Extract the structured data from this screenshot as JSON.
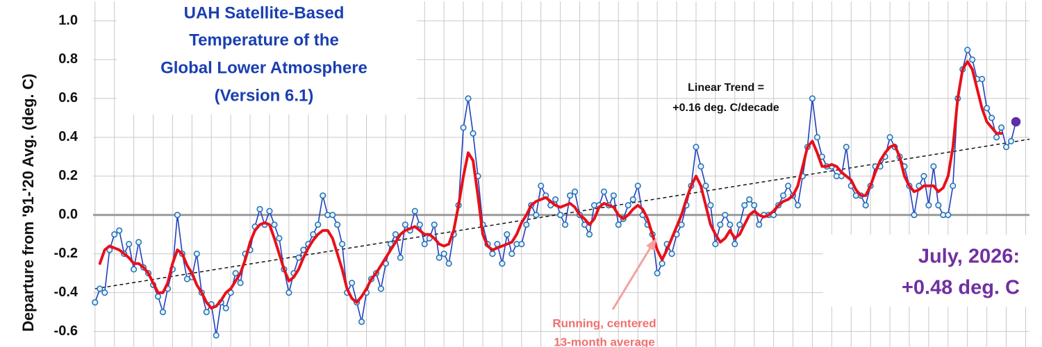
{
  "chart_data": {
    "type": "line",
    "title": [
      "UAH Satellite-Based",
      "Temperature of the",
      "Global Lower Atmosphere",
      "(Version 6.1)"
    ],
    "y_label": "Departure from '91-'20 Avg. (deg. C)",
    "trend_label": [
      "Linear Trend =",
      "+0.16 deg. C/decade"
    ],
    "latest_label": [
      "July, 2026:",
      "+0.48 deg. C"
    ],
    "mean_label": [
      "Running, centered",
      "13-month average"
    ],
    "xlim": [
      1978.9,
      2027.2
    ],
    "ylim": [
      -0.68,
      1.1
    ],
    "yticks": [
      -0.6,
      -0.4,
      -0.2,
      {
        "value": 0,
        "label": "0.0"
      },
      0.2,
      0.4,
      0.6,
      0.8,
      {
        "value": 1,
        "label": "1.0"
      }
    ],
    "grid": true,
    "highlight_color": "#5b2fa8",
    "x": [
      1979,
      1979.25,
      1979.5,
      1979.75,
      1980,
      1980.25,
      1980.5,
      1980.75,
      1981,
      1981.25,
      1981.5,
      1981.75,
      1982,
      1982.25,
      1982.5,
      1982.75,
      1983,
      1983.25,
      1983.5,
      1983.75,
      1984,
      1984.25,
      1984.5,
      1984.75,
      1985,
      1985.25,
      1985.5,
      1985.75,
      1986,
      1986.25,
      1986.5,
      1986.75,
      1987,
      1987.25,
      1987.5,
      1987.75,
      1988,
      1988.25,
      1988.5,
      1988.75,
      1989,
      1989.25,
      1989.5,
      1989.75,
      1990,
      1990.25,
      1990.5,
      1990.75,
      1991,
      1991.25,
      1991.5,
      1991.75,
      1992,
      1992.25,
      1992.5,
      1992.75,
      1993,
      1993.25,
      1993.5,
      1993.75,
      1994,
      1994.25,
      1994.5,
      1994.75,
      1995,
      1995.25,
      1995.5,
      1995.75,
      1996,
      1996.25,
      1996.5,
      1996.75,
      1997,
      1997.25,
      1997.5,
      1997.75,
      1998,
      1998.25,
      1998.5,
      1998.75,
      1999,
      1999.25,
      1999.5,
      1999.75,
      2000,
      2000.25,
      2000.5,
      2000.75,
      2001,
      2001.25,
      2001.5,
      2001.75,
      2002,
      2002.25,
      2002.5,
      2002.75,
      2003,
      2003.25,
      2003.5,
      2003.75,
      2004,
      2004.25,
      2004.5,
      2004.75,
      2005,
      2005.25,
      2005.5,
      2005.75,
      2006,
      2006.25,
      2006.5,
      2006.75,
      2007,
      2007.25,
      2007.5,
      2007.75,
      2008,
      2008.25,
      2008.5,
      2008.75,
      2009,
      2009.25,
      2009.5,
      2009.75,
      2010,
      2010.25,
      2010.5,
      2010.75,
      2011,
      2011.25,
      2011.5,
      2011.75,
      2012,
      2012.25,
      2012.5,
      2012.75,
      2013,
      2013.25,
      2013.5,
      2013.75,
      2014,
      2014.25,
      2014.5,
      2014.75,
      2015,
      2015.25,
      2015.5,
      2015.75,
      2016,
      2016.25,
      2016.5,
      2016.75,
      2017,
      2017.25,
      2017.5,
      2017.75,
      2018,
      2018.25,
      2018.5,
      2018.75,
      2019,
      2019.25,
      2019.5,
      2019.75,
      2020,
      2020.25,
      2020.5,
      2020.75,
      2021,
      2021.25,
      2021.5,
      2021.75,
      2022,
      2022.25,
      2022.5,
      2022.75,
      2023,
      2023.25,
      2023.5,
      2023.75,
      2024,
      2024.25,
      2024.5,
      2024.75,
      2025,
      2025.25,
      2025.5,
      2025.75,
      2026,
      2026.25,
      2026.5
    ],
    "series": [
      {
        "color": "#1f3fbf",
        "marker_fill": "#e3f1f8",
        "marker_stroke": "#1f6fb4",
        "values": [
          -0.45,
          -0.38,
          -0.4,
          -0.18,
          -0.1,
          -0.08,
          -0.2,
          -0.15,
          -0.28,
          -0.14,
          -0.27,
          -0.3,
          -0.36,
          -0.42,
          -0.5,
          -0.38,
          -0.28,
          0,
          -0.2,
          -0.33,
          -0.32,
          -0.2,
          -0.4,
          -0.5,
          -0.46,
          -0.62,
          -0.45,
          -0.48,
          -0.4,
          -0.3,
          -0.35,
          -0.2,
          -0.18,
          -0.06,
          0.03,
          -0.05,
          0.02,
          -0.05,
          -0.12,
          -0.28,
          -0.4,
          -0.3,
          -0.22,
          -0.18,
          -0.15,
          -0.1,
          -0.05,
          0.1,
          0,
          0,
          -0.05,
          -0.15,
          -0.4,
          -0.35,
          -0.45,
          -0.55,
          -0.4,
          -0.33,
          -0.3,
          -0.38,
          -0.25,
          -0.15,
          -0.1,
          -0.22,
          -0.05,
          -0.08,
          0.02,
          -0.05,
          -0.15,
          -0.12,
          -0.05,
          -0.22,
          -0.2,
          -0.25,
          -0.1,
          0.05,
          0.45,
          0.6,
          0.42,
          0.2,
          -0.05,
          -0.15,
          -0.2,
          -0.15,
          -0.25,
          -0.1,
          -0.2,
          -0.15,
          -0.15,
          -0.05,
          0.05,
          0,
          0.15,
          0.1,
          0.05,
          0.08,
          0,
          -0.05,
          0.1,
          0.12,
          0,
          -0.05,
          -0.1,
          0.05,
          0.05,
          0.12,
          0.05,
          0.1,
          -0.05,
          -0.02,
          0.05,
          0.08,
          0.15,
          0,
          -0.05,
          -0.1,
          -0.3,
          -0.25,
          -0.15,
          -0.2,
          -0.1,
          -0.05,
          0.05,
          0.15,
          0.35,
          0.25,
          0.15,
          0.05,
          -0.15,
          -0.05,
          0,
          -0.05,
          -0.15,
          -0.05,
          0.05,
          0.08,
          0.05,
          -0.05,
          0,
          0,
          0,
          0.05,
          0.1,
          0.15,
          0.1,
          0.05,
          0.2,
          0.35,
          0.6,
          0.4,
          0.3,
          0.25,
          0.25,
          0.2,
          0.2,
          0.35,
          0.15,
          0.1,
          0.1,
          0.05,
          0.15,
          0.25,
          0.25,
          0.3,
          0.4,
          0.35,
          0.3,
          0.25,
          0.15,
          0,
          0.15,
          0.2,
          0.05,
          0.25,
          0.05,
          0,
          0,
          0.15,
          0.6,
          0.75,
          0.85,
          0.8,
          0.7,
          0.7,
          0.55,
          0.5,
          0.4,
          0.45,
          0.35,
          0.38,
          0.48
        ]
      },
      {
        "color": "#e8101a",
        "values": [
          null,
          -0.25,
          -0.18,
          -0.16,
          -0.17,
          -0.18,
          -0.2,
          -0.22,
          -0.25,
          -0.25,
          -0.27,
          -0.3,
          -0.35,
          -0.4,
          -0.4,
          -0.35,
          -0.25,
          -0.18,
          -0.2,
          -0.26,
          -0.3,
          -0.36,
          -0.4,
          -0.45,
          -0.48,
          -0.47,
          -0.44,
          -0.4,
          -0.38,
          -0.34,
          -0.3,
          -0.23,
          -0.14,
          -0.08,
          -0.05,
          -0.04,
          -0.05,
          -0.12,
          -0.2,
          -0.28,
          -0.34,
          -0.32,
          -0.28,
          -0.22,
          -0.17,
          -0.13,
          -0.1,
          -0.08,
          -0.08,
          -0.12,
          -0.2,
          -0.28,
          -0.38,
          -0.43,
          -0.45,
          -0.42,
          -0.38,
          -0.33,
          -0.3,
          -0.26,
          -0.22,
          -0.18,
          -0.14,
          -0.1,
          -0.08,
          -0.07,
          -0.06,
          -0.08,
          -0.1,
          -0.1,
          -0.12,
          -0.15,
          -0.16,
          -0.15,
          -0.08,
          0.05,
          0.2,
          0.32,
          0.28,
          0.1,
          -0.1,
          -0.16,
          -0.18,
          -0.17,
          -0.16,
          -0.15,
          -0.14,
          -0.1,
          -0.04,
          0,
          0.05,
          0.07,
          0.08,
          0.09,
          0.07,
          0.05,
          0.04,
          0.05,
          0.06,
          0.04,
          0,
          -0.02,
          -0.05,
          -0.02,
          0.04,
          0.06,
          0.05,
          0.04,
          0,
          -0.02,
          0,
          0.03,
          0.05,
          0.03,
          -0.02,
          -0.1,
          -0.18,
          -0.23,
          -0.18,
          -0.12,
          -0.06,
          0,
          0.08,
          0.15,
          0.2,
          0.15,
          0.05,
          -0.05,
          -0.1,
          -0.14,
          -0.12,
          -0.08,
          -0.12,
          -0.1,
          -0.05,
          0,
          0.02,
          0,
          -0.01,
          0,
          0.02,
          0.05,
          0.07,
          0.08,
          0.1,
          0.15,
          0.25,
          0.35,
          0.38,
          0.32,
          0.25,
          0.25,
          0.26,
          0.25,
          0.22,
          0.2,
          0.18,
          0.13,
          0.1,
          0.1,
          0.15,
          0.22,
          0.28,
          0.32,
          0.35,
          0.36,
          0.3,
          0.2,
          0.15,
          0.12,
          0.13,
          0.15,
          0.15,
          0.15,
          0.12,
          0.14,
          0.2,
          0.35,
          0.6,
          0.75,
          0.79,
          0.75,
          0.65,
          0.55,
          0.48,
          0.45,
          0.42,
          0.42,
          null,
          null,
          null
        ]
      }
    ],
    "trend": {
      "color": "#111111",
      "x": [
        1979,
        2027.2
      ],
      "values": [
        -0.38,
        0.39
      ]
    }
  }
}
